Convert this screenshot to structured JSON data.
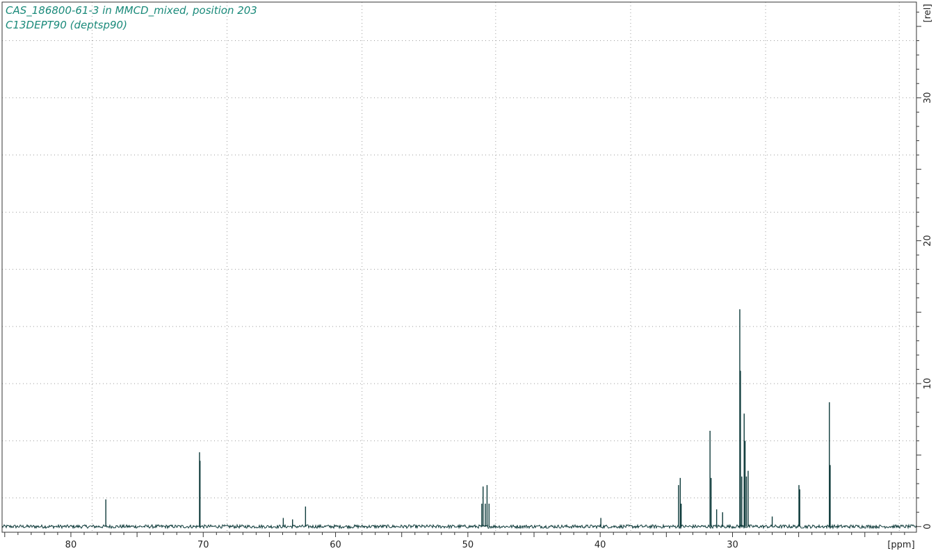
{
  "colors": {
    "title": "#1a8a7a",
    "spectrum": "#0d3a3a",
    "grid": "#9a9a9a",
    "axis": "#333333"
  },
  "chart_data": {
    "type": "line",
    "title": "CAS_186800-61-3 in MMCD_mixed, position 203",
    "subtitle": "C13DEPT90 (deptsp90)",
    "xlabel": "[ppm]",
    "ylabel": "[rel]",
    "xlim": [
      85.2,
      16.1
    ],
    "ylim": [
      -0.4,
      36.7
    ],
    "x_ticks": [
      80,
      70,
      60,
      50,
      40,
      30,
      20
    ],
    "x_tick_labels": [
      "80",
      "70",
      "60",
      "50",
      "40",
      "30",
      ""
    ],
    "y_ticks": [
      0,
      10,
      20,
      30
    ],
    "y_tick_labels": [
      "0",
      "10",
      "20",
      "30"
    ],
    "x_grid": [
      78.4,
      68.2,
      58.0,
      47.9,
      37.7,
      27.5,
      17.4
    ],
    "y_grid": [
      0,
      2,
      6,
      10,
      14,
      18,
      22,
      26,
      30,
      34
    ],
    "grid": true,
    "series": [
      {
        "peaks": [
          {
            "x": 77.36,
            "y": 1.9
          },
          {
            "x": 70.28,
            "y": 5.2
          },
          {
            "x": 70.24,
            "y": 4.6
          },
          {
            "x": 63.95,
            "y": 0.6
          },
          {
            "x": 63.25,
            "y": 0.5
          },
          {
            "x": 62.27,
            "y": 1.4
          },
          {
            "x": 48.95,
            "y": 1.6
          },
          {
            "x": 48.85,
            "y": 2.8
          },
          {
            "x": 48.68,
            "y": 1.6
          },
          {
            "x": 48.55,
            "y": 2.9
          },
          {
            "x": 48.4,
            "y": 1.6
          },
          {
            "x": 39.95,
            "y": 0.6
          },
          {
            "x": 34.08,
            "y": 2.9
          },
          {
            "x": 33.95,
            "y": 3.4
          },
          {
            "x": 33.88,
            "y": 1.6
          },
          {
            "x": 31.7,
            "y": 6.7
          },
          {
            "x": 31.62,
            "y": 3.4
          },
          {
            "x": 31.2,
            "y": 1.2
          },
          {
            "x": 30.75,
            "y": 1.0
          },
          {
            "x": 29.45,
            "y": 15.2
          },
          {
            "x": 29.4,
            "y": 10.9
          },
          {
            "x": 29.3,
            "y": 3.5
          },
          {
            "x": 29.12,
            "y": 7.9
          },
          {
            "x": 29.05,
            "y": 6.0
          },
          {
            "x": 28.95,
            "y": 3.5
          },
          {
            "x": 28.82,
            "y": 3.9
          },
          {
            "x": 27.0,
            "y": 0.7
          },
          {
            "x": 24.98,
            "y": 2.9
          },
          {
            "x": 24.92,
            "y": 2.6
          },
          {
            "x": 22.68,
            "y": 8.7
          },
          {
            "x": 22.62,
            "y": 4.3
          }
        ],
        "noise_level": 0.12
      }
    ]
  }
}
